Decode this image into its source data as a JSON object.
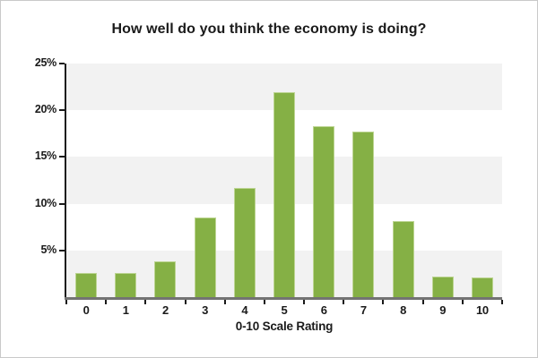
{
  "chart_data": {
    "type": "bar",
    "title": "How well do you think the economy is doing?",
    "xlabel": "0-10 Scale Rating",
    "ylabel": "",
    "categories": [
      "0",
      "1",
      "2",
      "3",
      "4",
      "5",
      "6",
      "7",
      "8",
      "9",
      "10"
    ],
    "values": [
      2.6,
      2.6,
      3.8,
      8.5,
      11.7,
      21.9,
      18.3,
      17.7,
      8.1,
      2.2,
      2.1
    ],
    "ylim": [
      0,
      25
    ],
    "y_ticks": [
      25,
      20,
      15,
      10,
      5
    ],
    "y_tick_suffix": "%",
    "legend": "none",
    "grid": "alternating horizontal 5% bands, gray topmost",
    "colors": {
      "bar_fill": "#85b045",
      "bar_edge": "#bdd593",
      "band_gray": "#f2f2f2",
      "band_white": "#ffffff",
      "x_axis_line": "#737373",
      "y_axis_line": "#1a1a1a",
      "text": "#1a1a1a",
      "frame_border": "#c9c9c9",
      "background": "#ffffff"
    }
  }
}
